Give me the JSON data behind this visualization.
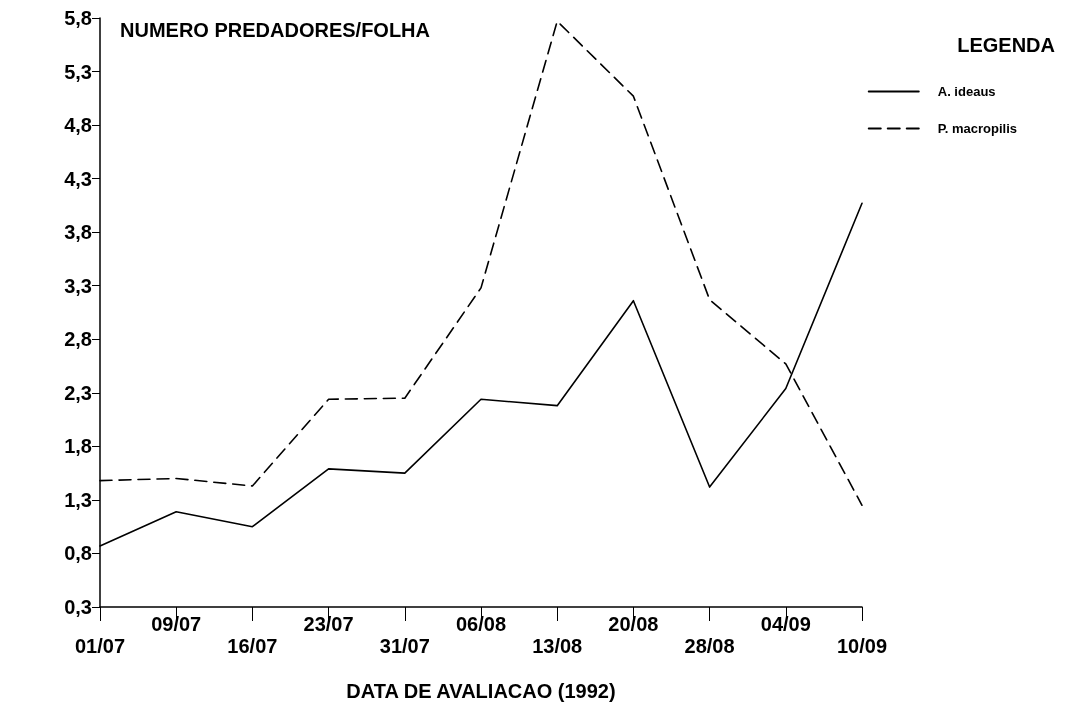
{
  "chart_data": {
    "type": "line",
    "ylabel": "NUMERO PREDADORES/FOLHA",
    "xlabel": "DATA DE AVALIACAO (1992)",
    "legend_title": "LEGENDA",
    "categories": [
      "01/07",
      "09/07",
      "16/07",
      "23/07",
      "31/07",
      "06/08",
      "13/08",
      "20/08",
      "28/08",
      "04/09",
      "10/09"
    ],
    "series": [
      {
        "name": "A. ideaus",
        "color": "#000000",
        "line_style": "solid",
        "values": [
          0.87,
          1.19,
          1.05,
          1.59,
          1.55,
          2.24,
          2.18,
          3.16,
          1.42,
          2.34,
          4.07
        ]
      },
      {
        "name": "P. macropilis",
        "color": "#000000",
        "line_style": "dashed",
        "values": [
          1.48,
          1.5,
          1.43,
          2.24,
          2.25,
          3.28,
          5.77,
          5.07,
          3.17,
          2.57,
          1.25
        ]
      }
    ],
    "ylim": [
      0.3,
      5.8
    ],
    "yticks": [
      {
        "value": 0.3,
        "label": "0,3"
      },
      {
        "value": 0.8,
        "label": "0,8"
      },
      {
        "value": 1.3,
        "label": "1,3"
      },
      {
        "value": 1.8,
        "label": "1,8"
      },
      {
        "value": 2.3,
        "label": "2,3"
      },
      {
        "value": 2.8,
        "label": "2,8"
      },
      {
        "value": 3.3,
        "label": "3,3"
      },
      {
        "value": 3.8,
        "label": "3,8"
      },
      {
        "value": 4.3,
        "label": "4,3"
      },
      {
        "value": 4.8,
        "label": "4,8"
      },
      {
        "value": 5.3,
        "label": "5,3"
      },
      {
        "value": 5.8,
        "label": "5,8"
      }
    ],
    "grid": false,
    "legend": "top right",
    "marker": "none"
  }
}
